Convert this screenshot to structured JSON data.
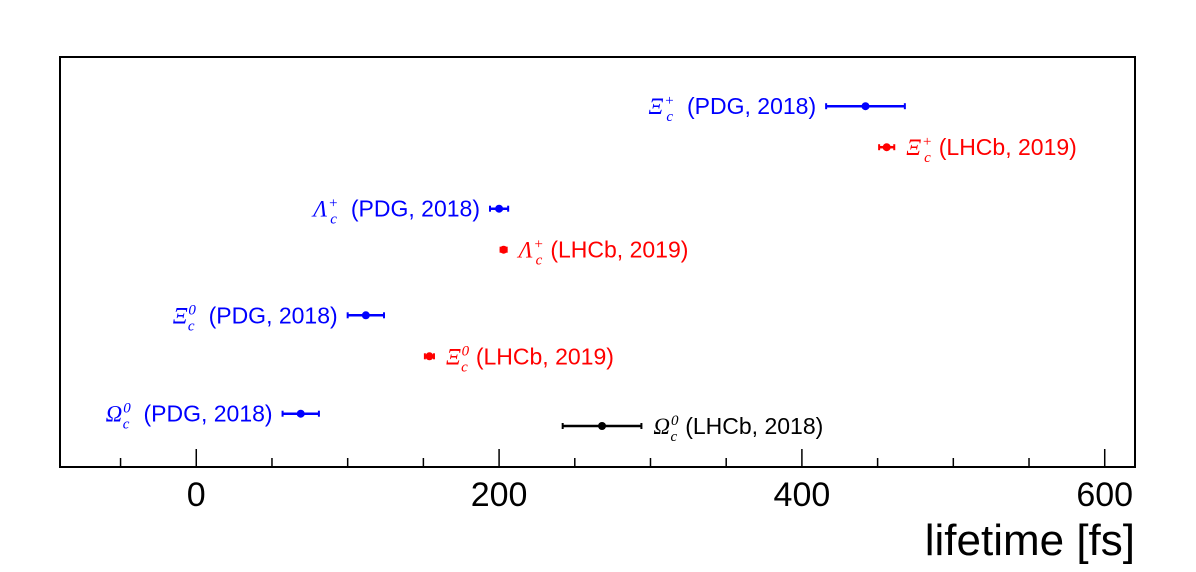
{
  "chart_data": {
    "type": "scatter",
    "title": "",
    "xlabel": "lifetime [fs]",
    "ylabel": "",
    "xlim": [
      -90,
      620
    ],
    "xticks": [
      0,
      200,
      400,
      600
    ],
    "xtick_labels": [
      "0",
      "200",
      "400",
      "600"
    ],
    "grid": false,
    "legend": "none",
    "colors": {
      "pdg": "#0000ff",
      "lhcb2019": "#ff0000",
      "lhcb2018": "#000000"
    },
    "points": [
      {
        "id": "xic-plus-pdg",
        "row": 0.88,
        "value": 442,
        "err": 26,
        "color": "#0000ff",
        "symbol": "Ξ",
        "sub": "c",
        "sup": "+",
        "label": "(PDG, 2018)",
        "label_side": "left"
      },
      {
        "id": "xic-plus-lhcb",
        "row": 0.78,
        "value": 456,
        "err": 5,
        "color": "#ff0000",
        "symbol": "Ξ",
        "sub": "c",
        "sup": "+",
        "label": "(LHCb, 2019)",
        "label_side": "right"
      },
      {
        "id": "lc-plus-pdg",
        "row": 0.63,
        "value": 200,
        "err": 6,
        "color": "#0000ff",
        "symbol": "Λ",
        "sub": "c",
        "sup": "+",
        "label": "(PDG, 2018)",
        "label_side": "left"
      },
      {
        "id": "lc-plus-lhcb",
        "row": 0.53,
        "value": 203,
        "err": 2,
        "color": "#ff0000",
        "symbol": "Λ",
        "sub": "c",
        "sup": "+",
        "label": "(LHCb, 2019)",
        "label_side": "right"
      },
      {
        "id": "xic0-pdg",
        "row": 0.37,
        "value": 112,
        "err": 12,
        "color": "#0000ff",
        "symbol": "Ξ",
        "sub": "c",
        "sup": "0",
        "label": "(PDG, 2018)",
        "label_side": "left"
      },
      {
        "id": "xic0-lhcb",
        "row": 0.27,
        "value": 154,
        "err": 3,
        "color": "#ff0000",
        "symbol": "Ξ",
        "sub": "c",
        "sup": "0",
        "label": "(LHCb, 2019)",
        "label_side": "right"
      },
      {
        "id": "omc0-pdg",
        "row": 0.13,
        "value": 69,
        "err": 12,
        "color": "#0000ff",
        "symbol": "Ω",
        "sub": "c",
        "sup": "0",
        "label": "(PDG, 2018)",
        "label_side": "left"
      },
      {
        "id": "omc0-lhcb2018",
        "row": 0.1,
        "value": 268,
        "err": 26,
        "color": "#000000",
        "symbol": "Ω",
        "sub": "c",
        "sup": "0",
        "label": "(LHCb, 2018)",
        "label_side": "right"
      }
    ]
  }
}
